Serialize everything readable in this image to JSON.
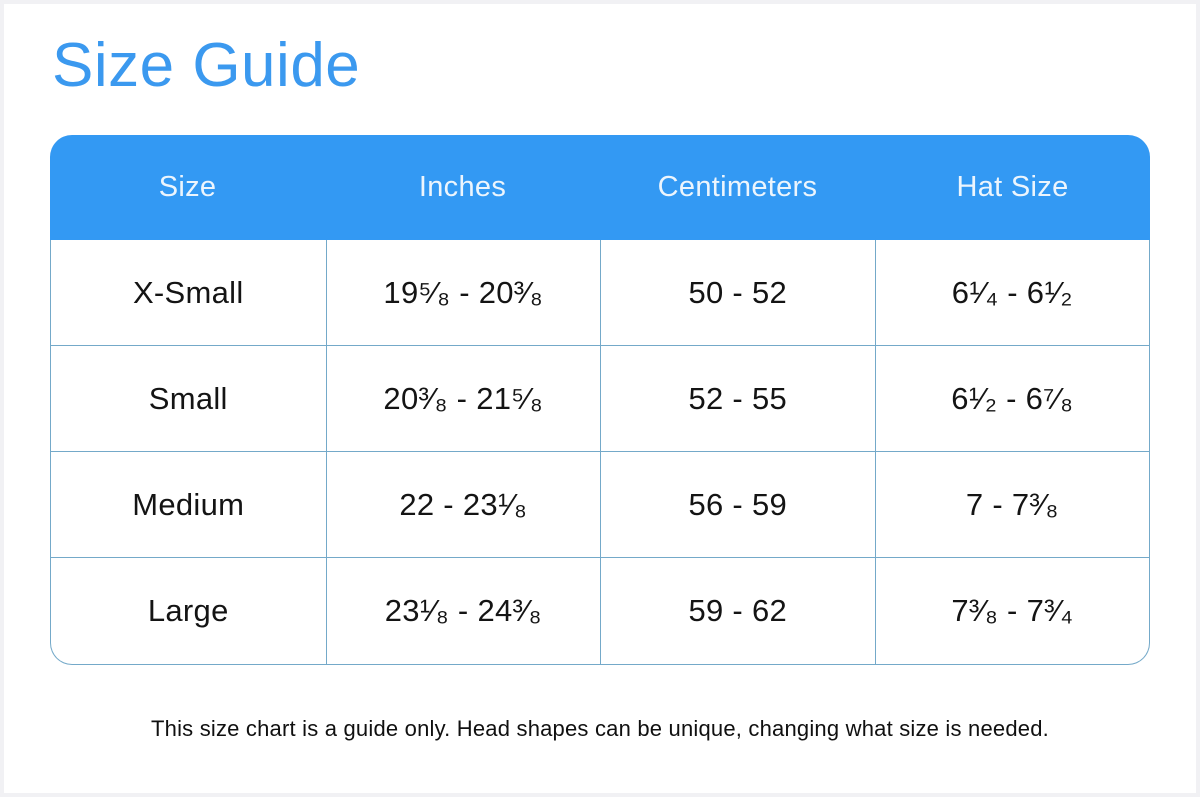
{
  "colors": {
    "title_blue": "#3b99ef",
    "header_blue": "#3399f3",
    "table_border_blue": "#74a9c9",
    "header_text": "#ecf5fd",
    "body_text": "#141414",
    "frame_border": "#f1f1f4"
  },
  "chart_data": {
    "type": "table",
    "title": "Size Guide",
    "columns": [
      "Size",
      "Inches",
      "Centimeters",
      "Hat Size"
    ],
    "rows": [
      {
        "size": "X-Small",
        "inches": "19⁵⁄₈ - 20³⁄₈",
        "centimeters": "50 - 52",
        "hat_size": "6¹⁄₄ - 6¹⁄₂"
      },
      {
        "size": "Small",
        "inches": "20³⁄₈ - 21⁵⁄₈",
        "centimeters": "52 - 55",
        "hat_size": "6¹⁄₂ - 6⁷⁄₈"
      },
      {
        "size": "Medium",
        "inches": "22 - 23¹⁄₈",
        "centimeters": "56 - 59",
        "hat_size": "7 - 7³⁄₈"
      },
      {
        "size": "Large",
        "inches": "23¹⁄₈ - 24³⁄₈",
        "centimeters": "59 - 62",
        "hat_size": "7³⁄₈ - 7³⁄₄"
      }
    ],
    "footnote": "This size chart is a guide only. Head shapes can be unique, changing what size is needed."
  }
}
